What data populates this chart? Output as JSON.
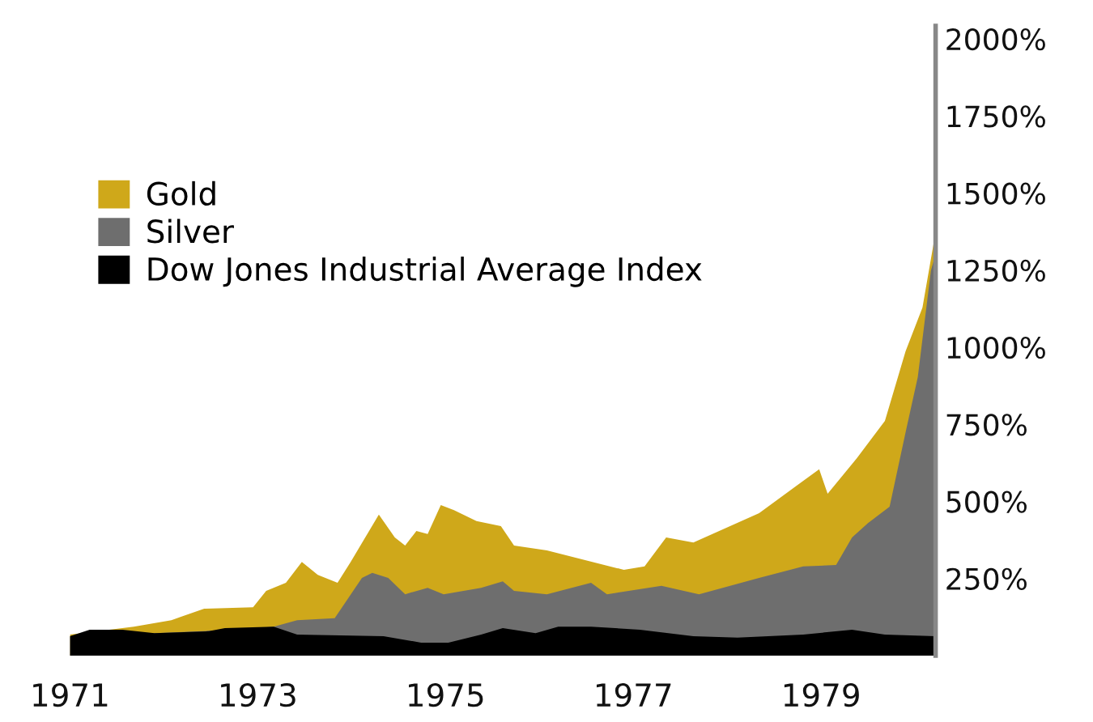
{
  "chart_data": {
    "type": "area",
    "xlim": [
      1971,
      1980.22
    ],
    "xticks": [
      1971,
      1973,
      1975,
      1977,
      1979
    ],
    "ylim": [
      0,
      2042
    ],
    "yticks": [
      {
        "value": 250,
        "label": "250%"
      },
      {
        "value": 500,
        "label": "500%"
      },
      {
        "value": 750,
        "label": "750%"
      },
      {
        "value": 1000,
        "label": "1000%"
      },
      {
        "value": 1250,
        "label": "1250%"
      },
      {
        "value": 1500,
        "label": "1500%"
      },
      {
        "value": 1750,
        "label": "1750%"
      },
      {
        "value": 2000,
        "label": "2000%"
      }
    ],
    "grid": false,
    "legend": "top left",
    "series": [
      {
        "name": "Gold",
        "color": "#cfa81a",
        "x": [
          1971,
          1971.68,
          1972.08,
          1972.43,
          1972.95,
          1973.09,
          1973.3,
          1973.47,
          1973.64,
          1973.85,
          1973.99,
          1974.29,
          1974.46,
          1974.57,
          1974.69,
          1974.81,
          1974.95,
          1975.09,
          1975.33,
          1975.59,
          1975.73,
          1976.08,
          1976.9,
          1977.12,
          1977.35,
          1977.64,
          1978.34,
          1978.74,
          1978.98,
          1979.07,
          1979.38,
          1979.68,
          1979.9,
          1980.08,
          1980.2,
          1980.22
        ],
        "values": [
          68,
          94,
          115,
          152,
          157,
          210,
          236,
          304,
          262,
          236,
          304,
          457,
          383,
          357,
          404,
          394,
          488,
          472,
          436,
          420,
          357,
          341,
          278,
          289,
          383,
          367,
          462,
          551,
          604,
          525,
          640,
          761,
          987,
          1129,
          1339,
          1522
        ]
      },
      {
        "name": "Silver",
        "color": "#6e6e6e",
        "x": [
          1971,
          1971.9,
          1972.77,
          1973.17,
          1973.42,
          1973.82,
          1974.11,
          1974.22,
          1974.39,
          1974.57,
          1974.81,
          1974.98,
          1975.38,
          1975.61,
          1975.73,
          1976.08,
          1976.55,
          1976.72,
          1977.3,
          1977.7,
          1978.34,
          1978.81,
          1979.16,
          1979.33,
          1979.5,
          1979.73,
          1979.9,
          1980.03,
          1980.17,
          1980.22
        ],
        "values": [
          63,
          73,
          84,
          94,
          115,
          121,
          252,
          268,
          252,
          199,
          220,
          199,
          220,
          241,
          210,
          199,
          236,
          199,
          226,
          199,
          252,
          289,
          294,
          383,
          430,
          483,
          724,
          903,
          1249,
          1302
        ]
      },
      {
        "name": "Dow Jones Industrial Average Index",
        "color": "#000000",
        "x": [
          1971,
          1971.21,
          1971.56,
          1971.9,
          1972.48,
          1972.65,
          1973.17,
          1973.42,
          1974.34,
          1974.74,
          1975.03,
          1975.38,
          1975.61,
          1975.96,
          1976.2,
          1976.55,
          1977.07,
          1977.64,
          1978.11,
          1978.81,
          1979.33,
          1979.68,
          1980.22
        ],
        "values": [
          63,
          84,
          84,
          73,
          79,
          89,
          94,
          68,
          63,
          42,
          42,
          68,
          89,
          73,
          94,
          94,
          84,
          63,
          58,
          68,
          84,
          68,
          63
        ]
      }
    ]
  }
}
